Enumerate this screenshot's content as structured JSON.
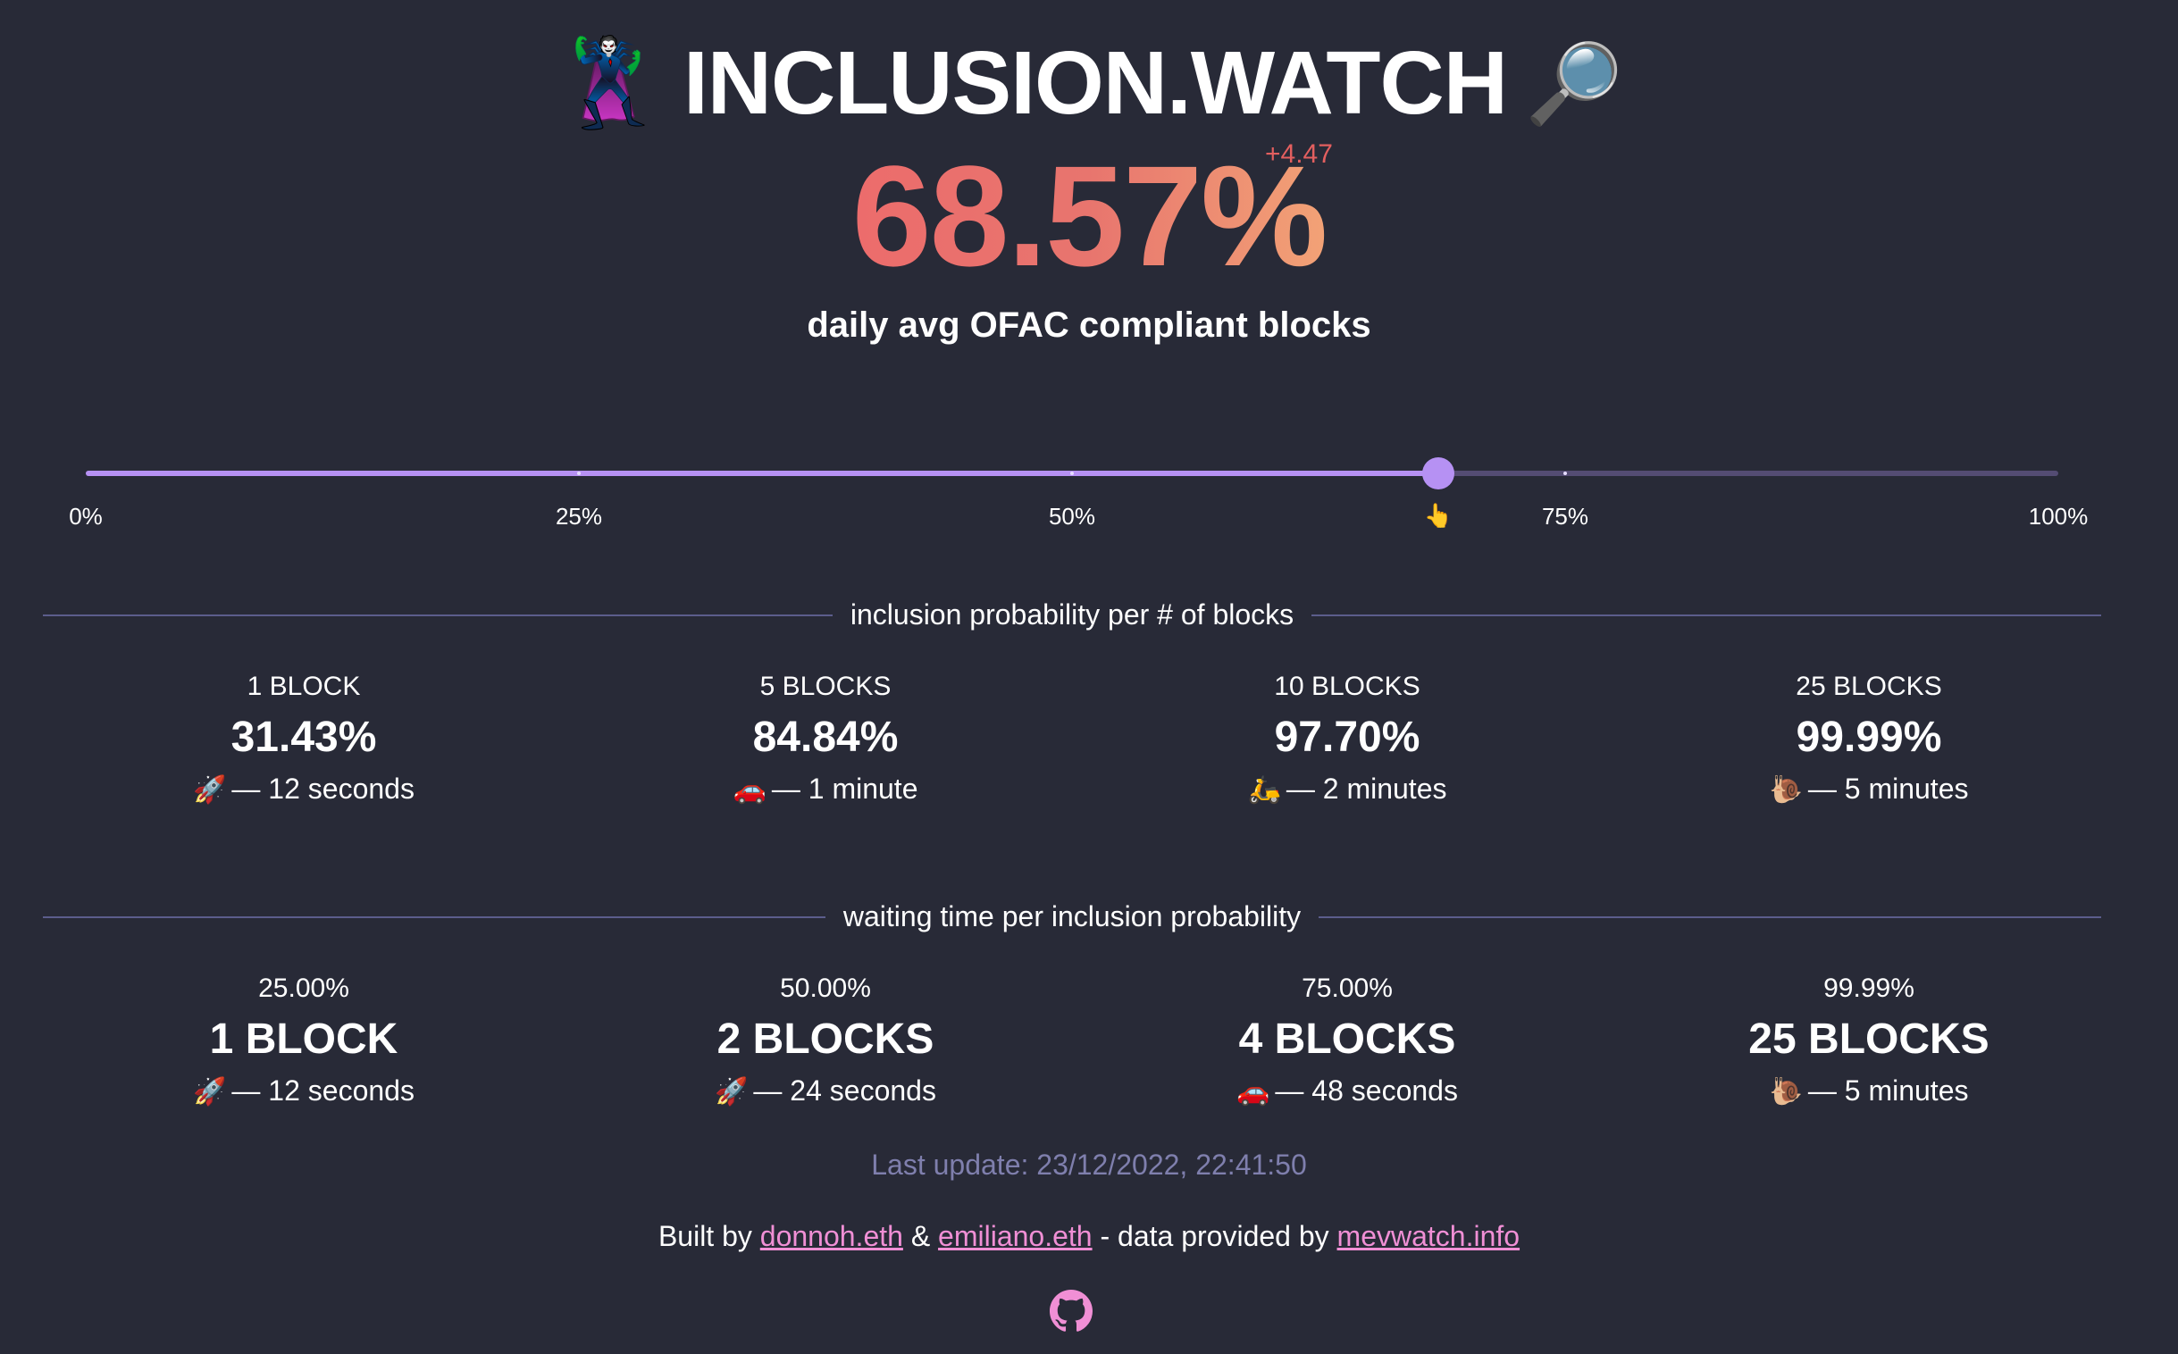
{
  "header": {
    "hero_emoji": "🦹",
    "title": "INCLUSION.WATCH",
    "lens_emoji": "🔎"
  },
  "headline": {
    "value": "68.57%",
    "delta": "+4.47",
    "subtitle": "daily avg OFAC compliant blocks",
    "gradient_colors": [
      "#ec6c6c",
      "#f2a276"
    ]
  },
  "slider": {
    "value_percent": 68.57,
    "ticks": [
      "0%",
      "25%",
      "50%",
      "75%",
      "100%"
    ],
    "pointer_emoji": "👆",
    "colors": {
      "fill": "#b691f3",
      "track": "#544c73"
    }
  },
  "section1": {
    "heading": "inclusion probability per # of blocks",
    "items": [
      {
        "top": "1 BLOCK",
        "mid": "31.43%",
        "icon": "🚀",
        "icon_name": "rocket-icon",
        "time": "— 12 seconds"
      },
      {
        "top": "5 BLOCKS",
        "mid": "84.84%",
        "icon": "🚗",
        "icon_name": "car-icon",
        "time": "— 1 minute"
      },
      {
        "top": "10 BLOCKS",
        "mid": "97.70%",
        "icon": "🛵",
        "icon_name": "scooter-icon",
        "time": "— 2 minutes"
      },
      {
        "top": "25 BLOCKS",
        "mid": "99.99%",
        "icon": "🐌",
        "icon_name": "snail-icon",
        "time": "— 5 minutes"
      }
    ]
  },
  "section2": {
    "heading": "waiting time per inclusion probability",
    "items": [
      {
        "top": "25.00%",
        "mid": "1 BLOCK",
        "icon": "🚀",
        "icon_name": "rocket-icon",
        "time": "— 12 seconds"
      },
      {
        "top": "50.00%",
        "mid": "2 BLOCKS",
        "icon": "🚀",
        "icon_name": "rocket-icon",
        "time": "— 24 seconds"
      },
      {
        "top": "75.00%",
        "mid": "4 BLOCKS",
        "icon": "🚗",
        "icon_name": "car-icon",
        "time": "— 48 seconds"
      },
      {
        "top": "99.99%",
        "mid": "25 BLOCKS",
        "icon": "🐌",
        "icon_name": "snail-icon",
        "time": "— 5 minutes"
      }
    ]
  },
  "footer": {
    "last_update": "Last update: 23/12/2022, 22:41:50",
    "built_prefix": "Built by ",
    "author1": "donnoh.eth",
    "amp": " & ",
    "author2": "emiliano.eth",
    "data_text": " - data provided by ",
    "data_source": "mevwatch.info",
    "github_icon": "github-icon",
    "link_color": "#f08fd5"
  }
}
